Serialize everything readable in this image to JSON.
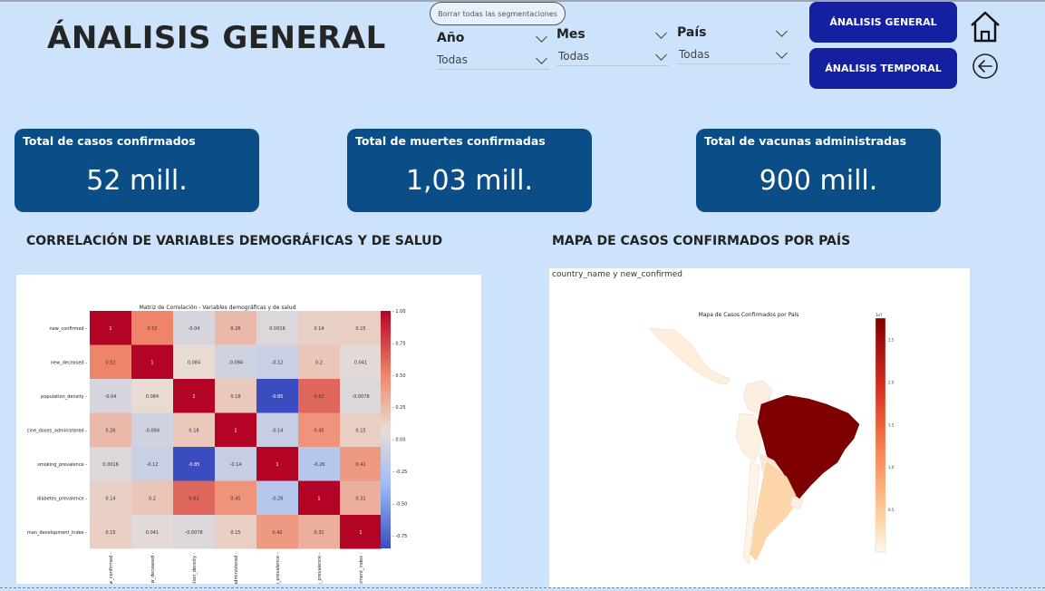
{
  "header": {
    "title": "ÁNALISIS GENERAL"
  },
  "filters": {
    "clear_label": "Borrar todas las segmentaciones",
    "slicers": [
      {
        "label": "Año",
        "value": "Todas"
      },
      {
        "label": "Mes",
        "value": "Todas"
      },
      {
        "label": "País",
        "value": "Todas"
      }
    ]
  },
  "nav": {
    "general_label": "ÁNALISIS GENERAL",
    "temporal_label": "ÁNALISIS TEMPORAL",
    "icons": [
      "home-icon",
      "back-arrow-icon"
    ]
  },
  "kpis": [
    {
      "label": "Total de casos confirmados",
      "value": "52 mill."
    },
    {
      "label": "Total de muertes confirmadas",
      "value": "1,03 mill."
    },
    {
      "label": "Total de vacunas administradas",
      "value": "900 mill."
    }
  ],
  "sections": {
    "correlation_title": "CORRELACIÓN DE VARIABLES DEMOGRÁFICAS Y DE SALUD",
    "map_title": "MAPA DE CASOS CONFIRMADOS POR PAÍS"
  },
  "chart_data": [
    {
      "type": "heatmap",
      "title": "Matriz de Correlación - Variables demográficas y de salud",
      "row_labels": [
        "new_confirmed",
        "new_deceased",
        "population_density",
        "cine_doses_administered",
        "smoking_prevalence",
        "diabetes_prevalence",
        "man_development_index"
      ],
      "col_labels": [
        "ew_confirmed",
        "new_deceased",
        "ulation_density",
        "_administered",
        "g_prevalence",
        "es_prevalence",
        "opment_index"
      ],
      "matrix": [
        [
          "1",
          "0.52",
          "-0.04",
          "0.26",
          "0.0016",
          "0.14",
          "0.15"
        ],
        [
          "0.52",
          "1",
          "0.084",
          "-0.084",
          "-0.12",
          "0.2",
          "0.041"
        ],
        [
          "-0.04",
          "0.084",
          "1",
          "0.18",
          "-0.85",
          "0.63",
          "-0.0078"
        ],
        [
          "0.26",
          "-0.084",
          "0.18",
          "1",
          "-0.14",
          "0.45",
          "0.15"
        ],
        [
          "0.0016",
          "-0.12",
          "-0.85",
          "-0.14",
          "1",
          "-0.26",
          "0.42"
        ],
        [
          "0.14",
          "0.2",
          "0.63",
          "0.45",
          "-0.26",
          "1",
          "0.31"
        ],
        [
          "0.15",
          "0.041",
          "-0.0078",
          "0.15",
          "0.42",
          "0.31",
          "1"
        ]
      ],
      "colorbar_ticks": [
        "1.00",
        "0.75",
        "0.50",
        "0.25",
        "0.00",
        "-0.25",
        "-0.50",
        "-0.75"
      ],
      "colormap": "coolwarm",
      "vmin": -0.85,
      "vmax": 1
    },
    {
      "type": "choropleth",
      "caption": "country_name y new_confirmed",
      "title": "Mapa de Casos Confirmados por País",
      "colorbar_ticks": [
        "1e7",
        "2.5",
        "2.0",
        "1.5",
        "1.0",
        "0.5"
      ],
      "colors": {
        "low": "#fdf3e6",
        "high": "#7f0000",
        "mid": "#fcd6a8"
      }
    }
  ]
}
